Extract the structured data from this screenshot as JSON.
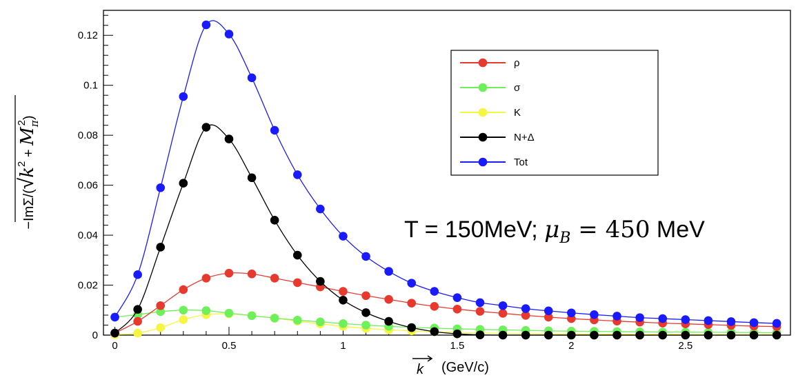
{
  "chart_data": {
    "type": "line",
    "title": "",
    "annotation": {
      "prefix": "T = 150MeV; ",
      "mu_symbol": "μ",
      "mu_subscript": "B",
      "equals": " = ",
      "number": "450",
      "unit": " MeV"
    },
    "xlabel": {
      "symbol": "k",
      "unit": "(GeV/c)"
    },
    "ylabel": {
      "prefix": "−ImΣ/(",
      "radical": "√",
      "k_symbol": "k",
      "k_exp": "2",
      "plus": " + ",
      "m_symbol": "M",
      "m_sub": "π",
      "m_exp": "2",
      "suffix": ")"
    },
    "xlim": [
      -0.05,
      2.96
    ],
    "ylim": [
      0,
      0.13
    ],
    "xticks": [
      0,
      0.5,
      1,
      1.5,
      2,
      2.5
    ],
    "xtick_labels": [
      "0",
      "0.5",
      "1",
      "1.5",
      "2",
      "2.5"
    ],
    "yticks": [
      0,
      0.02,
      0.04,
      0.06,
      0.08,
      0.1,
      0.12
    ],
    "ytick_labels": [
      "0",
      "0.02",
      "0.04",
      "0.06",
      "0.08",
      "0.1",
      "0.12"
    ],
    "x": [
      0,
      0.1,
      0.2,
      0.3,
      0.4,
      0.5,
      0.6,
      0.7,
      0.8,
      0.9,
      1.0,
      1.1,
      1.2,
      1.3,
      1.4,
      1.5,
      1.6,
      1.7,
      1.8,
      1.9,
      2.0,
      2.1,
      2.2,
      2.3,
      2.4,
      2.5,
      2.6,
      2.7,
      2.8,
      2.9
    ],
    "series": [
      {
        "name": "ρ",
        "color": "#e8392f",
        "values": [
          0.0008,
          0.0055,
          0.0118,
          0.0182,
          0.0228,
          0.0248,
          0.0245,
          0.0228,
          0.021,
          0.0193,
          0.0175,
          0.0158,
          0.0143,
          0.0128,
          0.0115,
          0.0104,
          0.0095,
          0.0087,
          0.0079,
          0.0072,
          0.0066,
          0.0061,
          0.0056,
          0.0052,
          0.0048,
          0.0045,
          0.0042,
          0.0039,
          0.0036,
          0.0034
        ]
      },
      {
        "name": "σ",
        "color": "#6ef05a",
        "values": [
          0.0072,
          0.0082,
          0.0094,
          0.01,
          0.0098,
          0.0088,
          0.0078,
          0.0068,
          0.006,
          0.0053,
          0.0046,
          0.004,
          0.0035,
          0.0031,
          0.0028,
          0.0025,
          0.0023,
          0.0021,
          0.0019,
          0.0017,
          0.0016,
          0.0015,
          0.0014,
          0.0013,
          0.0012,
          0.0012,
          0.0011,
          0.0011,
          0.001,
          0.001
        ]
      },
      {
        "name": "K",
        "color": "#f5f542",
        "values": [
          0.0002,
          0.0008,
          0.003,
          0.0062,
          0.0082,
          0.0085,
          0.0078,
          0.0068,
          0.0056,
          0.0045,
          0.0035,
          0.0027,
          0.0021,
          0.0017,
          0.0013,
          0.0011,
          0.0009,
          0.0007,
          0.0006,
          0.0005,
          0.0005,
          0.0004,
          0.0004,
          0.0003,
          0.0003,
          0.0003,
          0.0002,
          0.0002,
          0.0002,
          0.0002
        ]
      },
      {
        "name": "N+Δ",
        "color": "#000000",
        "values": [
          0.0008,
          0.0103,
          0.0352,
          0.0608,
          0.0832,
          0.0785,
          0.063,
          0.046,
          0.032,
          0.0215,
          0.014,
          0.009,
          0.0055,
          0.003,
          0.0014,
          0.0005,
          0.0001,
          0.0,
          0.0,
          0.0,
          0.0,
          0.0,
          0.0,
          0.0,
          0.0,
          0.0,
          0.0,
          0.0,
          0.0,
          0.0
        ]
      },
      {
        "name": "Tot",
        "color": "#1a1aff",
        "values": [
          0.0072,
          0.0242,
          0.059,
          0.0955,
          0.1242,
          0.1205,
          0.103,
          0.082,
          0.0642,
          0.0505,
          0.0396,
          0.0315,
          0.0255,
          0.0208,
          0.0175,
          0.015,
          0.013,
          0.0118,
          0.0106,
          0.0097,
          0.0089,
          0.0082,
          0.0076,
          0.007,
          0.0066,
          0.0062,
          0.0058,
          0.0054,
          0.005,
          0.0047
        ]
      }
    ],
    "legend_position": "top-right",
    "grid": false
  }
}
